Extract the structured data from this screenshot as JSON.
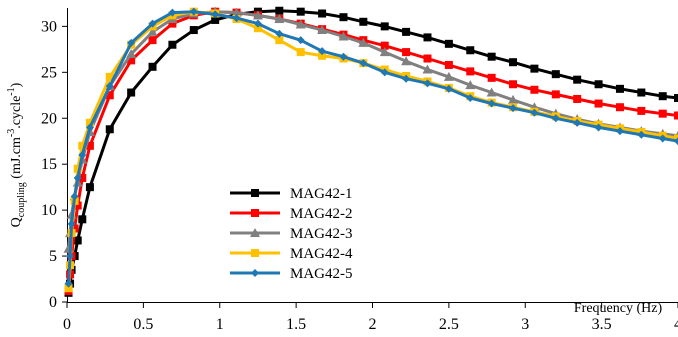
{
  "chart_data": {
    "type": "line",
    "title": "",
    "xlabel": "Frequency (Hz)",
    "ylabel": {
      "base": "Q",
      "sub": "coupling",
      "rest": " (mJ.cm",
      "sup1": "-3",
      "mid": ".cycle",
      "sup2": "-1",
      "close": ")"
    },
    "xlim": [
      0,
      4
    ],
    "ylim": [
      0,
      32
    ],
    "xticks": [
      "0",
      "0.5",
      "1",
      "1.5",
      "2",
      "2.5",
      "3",
      "3.5",
      "4"
    ],
    "yticks": [
      "0",
      "5",
      "10",
      "15",
      "20",
      "25",
      "30"
    ],
    "grid": false,
    "legend_position": "center-left",
    "series": [
      {
        "name": "MAG42-1",
        "color": "#000000",
        "marker": "square",
        "x": [
          0.01,
          0.02,
          0.03,
          0.05,
          0.07,
          0.1,
          0.15,
          0.28,
          0.42,
          0.56,
          0.69,
          0.83,
          0.97,
          1.11,
          1.25,
          1.39,
          1.53,
          1.67,
          1.81,
          1.94,
          2.08,
          2.22,
          2.36,
          2.5,
          2.64,
          2.78,
          2.92,
          3.06,
          3.2,
          3.34,
          3.48,
          3.62,
          3.76,
          3.9,
          4.0
        ],
        "y": [
          1.0,
          2.0,
          3.5,
          5.0,
          6.7,
          9.0,
          12.5,
          18.8,
          22.8,
          25.6,
          28.0,
          29.6,
          30.7,
          31.3,
          31.6,
          31.7,
          31.6,
          31.4,
          31.0,
          30.5,
          30.0,
          29.4,
          28.8,
          28.1,
          27.4,
          26.7,
          26.1,
          25.4,
          24.8,
          24.2,
          23.7,
          23.2,
          22.8,
          22.4,
          22.2
        ]
      },
      {
        "name": "MAG42-2",
        "color": "#ff0000",
        "marker": "square",
        "x": [
          0.01,
          0.02,
          0.03,
          0.05,
          0.07,
          0.1,
          0.15,
          0.28,
          0.42,
          0.56,
          0.69,
          0.83,
          0.97,
          1.11,
          1.25,
          1.39,
          1.53,
          1.67,
          1.81,
          1.94,
          2.08,
          2.22,
          2.36,
          2.5,
          2.64,
          2.78,
          2.92,
          3.06,
          3.2,
          3.34,
          3.48,
          3.62,
          3.76,
          3.9,
          4.0
        ],
        "y": [
          1.2,
          3.0,
          5.0,
          8.0,
          10.5,
          13.5,
          17.0,
          22.5,
          26.3,
          28.5,
          30.3,
          31.2,
          31.6,
          31.5,
          31.2,
          30.8,
          30.3,
          29.7,
          29.1,
          28.5,
          27.9,
          27.2,
          26.5,
          25.8,
          25.1,
          24.4,
          23.7,
          23.1,
          22.6,
          22.1,
          21.6,
          21.2,
          20.8,
          20.5,
          20.3
        ]
      },
      {
        "name": "MAG42-3",
        "color": "#808080",
        "marker": "triangle",
        "x": [
          0.01,
          0.02,
          0.03,
          0.05,
          0.07,
          0.1,
          0.15,
          0.28,
          0.42,
          0.56,
          0.69,
          0.83,
          0.97,
          1.11,
          1.25,
          1.39,
          1.53,
          1.67,
          1.81,
          1.94,
          2.08,
          2.22,
          2.36,
          2.5,
          2.64,
          2.78,
          2.92,
          3.06,
          3.2,
          3.34,
          3.48,
          3.62,
          3.76,
          3.9,
          4.0
        ],
        "y": [
          5.8,
          7.5,
          9.5,
          11.5,
          13.0,
          15.5,
          18.5,
          23.5,
          27.0,
          29.4,
          30.8,
          31.4,
          31.6,
          31.5,
          31.2,
          30.8,
          30.2,
          29.6,
          28.9,
          28.2,
          27.2,
          26.2,
          25.3,
          24.5,
          23.6,
          22.8,
          22.0,
          21.2,
          20.5,
          19.9,
          19.4,
          19.0,
          18.6,
          18.3,
          18.1
        ]
      },
      {
        "name": "MAG42-4",
        "color": "#ffc000",
        "marker": "square",
        "x": [
          0.01,
          0.02,
          0.03,
          0.05,
          0.07,
          0.1,
          0.15,
          0.28,
          0.42,
          0.56,
          0.69,
          0.83,
          0.97,
          1.11,
          1.25,
          1.39,
          1.53,
          1.67,
          1.81,
          1.94,
          2.08,
          2.22,
          2.36,
          2.5,
          2.64,
          2.78,
          2.92,
          3.06,
          3.2,
          3.34,
          3.48,
          3.62,
          3.76,
          3.9,
          4.0
        ],
        "y": [
          1.5,
          4.0,
          7.5,
          11.0,
          14.5,
          17.0,
          19.5,
          24.5,
          28.0,
          30.0,
          31.2,
          31.6,
          31.4,
          30.8,
          29.8,
          28.5,
          27.2,
          26.8,
          26.5,
          26.0,
          25.3,
          24.6,
          24.0,
          23.3,
          22.4,
          21.7,
          21.2,
          20.7,
          20.2,
          19.7,
          19.3,
          18.9,
          18.5,
          18.1,
          17.8
        ]
      },
      {
        "name": "MAG42-5",
        "color": "#1f77b4",
        "marker": "diamond",
        "x": [
          0.01,
          0.02,
          0.03,
          0.05,
          0.07,
          0.1,
          0.15,
          0.28,
          0.42,
          0.56,
          0.69,
          0.83,
          0.97,
          1.11,
          1.25,
          1.39,
          1.53,
          1.67,
          1.81,
          1.94,
          2.08,
          2.22,
          2.36,
          2.5,
          2.64,
          2.78,
          2.92,
          3.06,
          3.2,
          3.34,
          3.48,
          3.62,
          3.76,
          3.9,
          4.0
        ],
        "y": [
          2.0,
          5.0,
          8.5,
          11.5,
          13.5,
          16.0,
          19.0,
          23.5,
          28.2,
          30.3,
          31.5,
          31.6,
          31.3,
          30.9,
          30.3,
          29.2,
          28.5,
          27.3,
          26.7,
          26.0,
          25.0,
          24.3,
          23.8,
          23.2,
          22.2,
          21.6,
          21.1,
          20.6,
          20.0,
          19.5,
          19.0,
          18.6,
          18.2,
          17.8,
          17.5
        ]
      }
    ]
  }
}
